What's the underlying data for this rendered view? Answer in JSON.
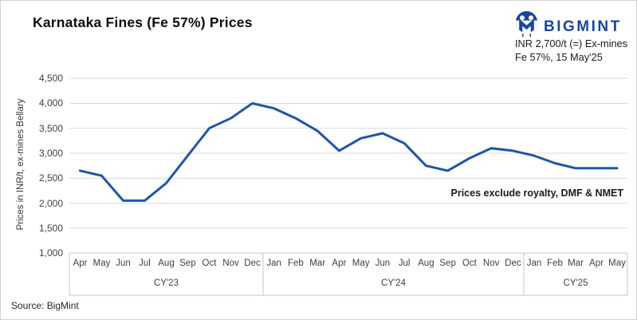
{
  "header": {
    "title": "Karnataka Fines (Fe 57%) Prices"
  },
  "brand": {
    "name": "BIGMINT",
    "accent_color": "#1847a0",
    "note_line1": "INR 2,700/t (=) Ex-mines",
    "note_line2": "Fe 57%, 15 May'25"
  },
  "chart_data": {
    "type": "line",
    "title": "Karnataka Fines (Fe 57%) Prices",
    "ylabel": "Prices in INR/t, ex-mines Bellary",
    "xlabel": "",
    "ylim": [
      1000,
      4500
    ],
    "ytick_step": 500,
    "yticks": [
      "4,500",
      "4,000",
      "3,500",
      "3,000",
      "2,500",
      "2,000",
      "1,500",
      "1,000"
    ],
    "grid": "horizontal-only",
    "legend": "none",
    "line_color": "#1f55a5",
    "gridline_color": "#d9d9d9",
    "axis_box_color": "#c6c6c6",
    "annotation": "Prices exclude royalty, DMF & NMET",
    "groups": [
      {
        "label": "CY'23",
        "months": [
          "Apr",
          "May",
          "Jun",
          "Jul",
          "Aug",
          "Sep",
          "Oct",
          "Nov",
          "Dec"
        ]
      },
      {
        "label": "CY'24",
        "months": [
          "Jan",
          "Feb",
          "Mar",
          "Apr",
          "May",
          "Jun",
          "Jul",
          "Aug",
          "Sep",
          "Oct",
          "Nov",
          "Dec"
        ]
      },
      {
        "label": "CY'25",
        "months": [
          "Jan",
          "Feb",
          "Mar",
          "Apr",
          "May"
        ]
      }
    ],
    "categories": [
      "Apr'23",
      "May'23",
      "Jun'23",
      "Jul'23",
      "Aug'23",
      "Sep'23",
      "Oct'23",
      "Nov'23",
      "Dec'23",
      "Jan'24",
      "Feb'24",
      "Mar'24",
      "Apr'24",
      "May'24",
      "Jun'24",
      "Jul'24",
      "Aug'24",
      "Sep'24",
      "Oct'24",
      "Nov'24",
      "Dec'24",
      "Jan'25",
      "Feb'25",
      "Mar'25",
      "Apr'25",
      "May'25"
    ],
    "values": [
      2650,
      2550,
      2050,
      2050,
      2400,
      2950,
      3500,
      3700,
      4000,
      3900,
      3700,
      3450,
      3050,
      3300,
      3400,
      3200,
      2750,
      2650,
      2900,
      3100,
      3050,
      2950,
      2800,
      2700,
      2700,
      2700
    ]
  },
  "footer": {
    "source": "Source: BigMint"
  }
}
